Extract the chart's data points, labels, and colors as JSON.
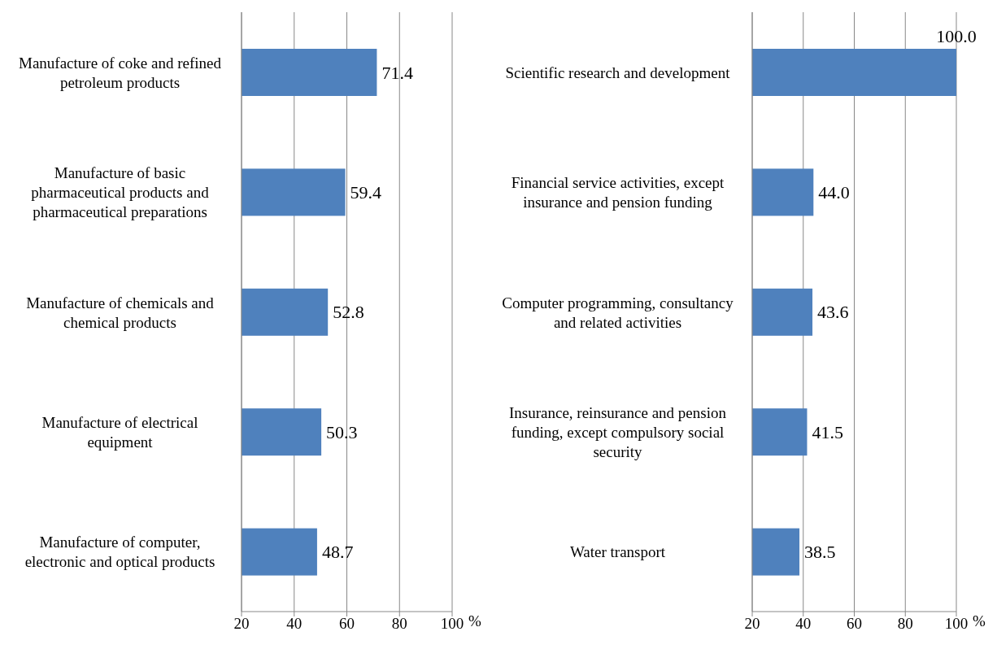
{
  "chart_data": [
    {
      "type": "bar",
      "orientation": "horizontal",
      "categories": [
        "Manufacture of coke and refined petroleum products",
        "Manufacture of basic pharmaceutical products and pharmaceutical preparations",
        "Manufacture of chemicals and chemical products",
        "Manufacture of electrical equipment",
        "Manufacture of computer, electronic and optical products"
      ],
      "values": [
        71.4,
        59.4,
        52.8,
        50.3,
        48.7
      ],
      "value_labels": [
        "71.4",
        "59.4",
        "52.8",
        "50.3",
        "48.7"
      ],
      "color": "#4f81bd",
      "xlabel": "%",
      "xlim": [
        20,
        100
      ],
      "xticks": [
        20,
        40,
        60,
        80,
        100
      ],
      "grid": "x"
    },
    {
      "type": "bar",
      "orientation": "horizontal",
      "categories": [
        "Scientific research and development",
        "Financial service activities, except insurance and pension funding",
        "Computer programming, consultancy and related activities",
        "Insurance, reinsurance and pension funding, except compulsory social security",
        "Water transport"
      ],
      "values": [
        100.0,
        44.0,
        43.6,
        41.5,
        38.5
      ],
      "value_labels": [
        "100.0",
        "44.0",
        "43.6",
        "41.5",
        "38.5"
      ],
      "color": "#4f81bd",
      "xlabel": "%",
      "xlim": [
        20,
        100
      ],
      "xticks": [
        20,
        40,
        60,
        80,
        100
      ],
      "grid": "x"
    }
  ]
}
